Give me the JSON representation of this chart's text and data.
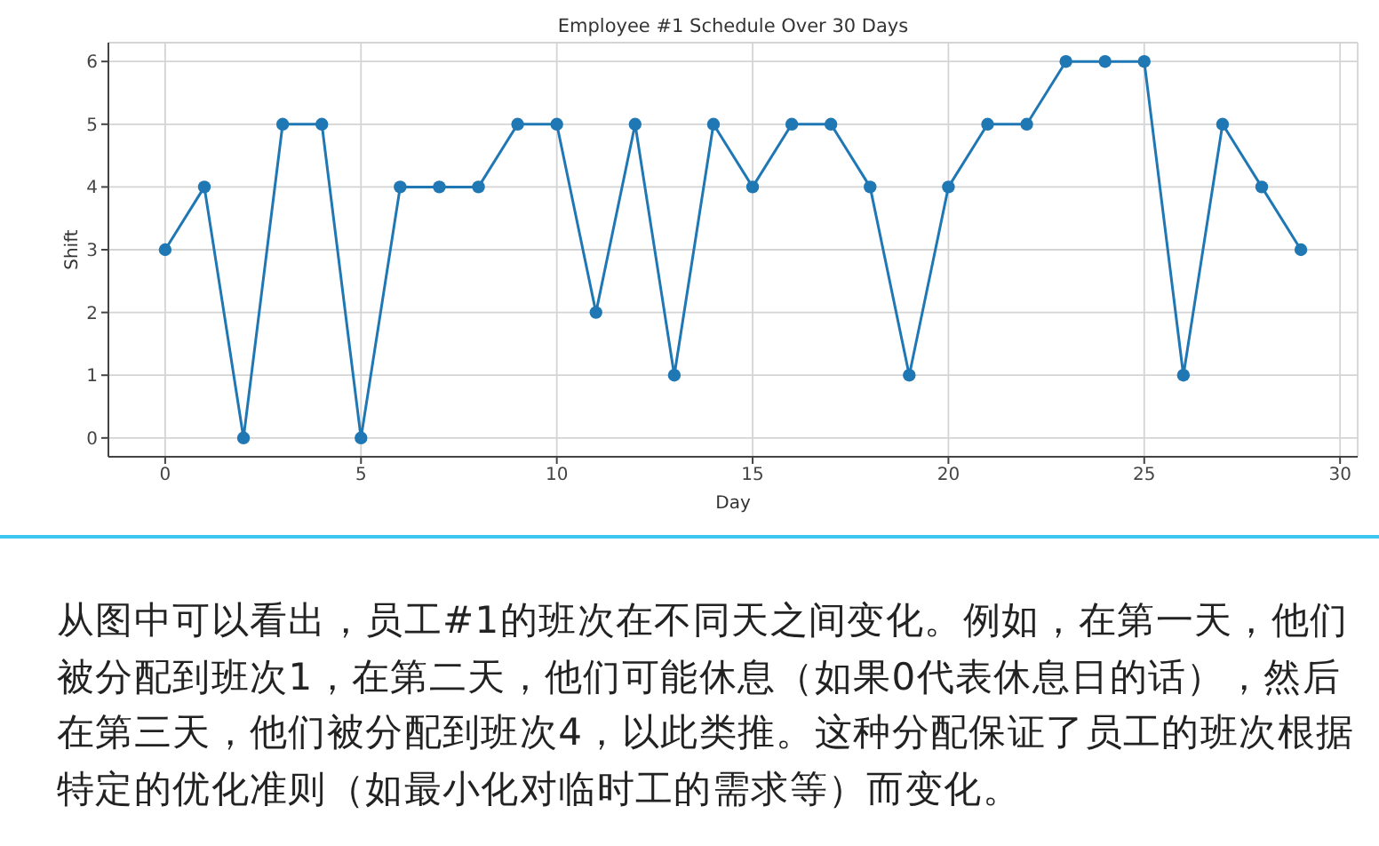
{
  "chart_data": {
    "type": "line",
    "title": "Employee #1 Schedule Over 30 Days",
    "xlabel": "Day",
    "ylabel": "Shift",
    "x": [
      0,
      1,
      2,
      3,
      4,
      5,
      6,
      7,
      8,
      9,
      10,
      11,
      12,
      13,
      14,
      15,
      16,
      17,
      18,
      19,
      20,
      21,
      22,
      23,
      24,
      25,
      26,
      27,
      28,
      29
    ],
    "series": [
      {
        "color": "#1f77b4",
        "values": [
          3,
          4,
          0,
          5,
          5,
          0,
          4,
          4,
          4,
          5,
          5,
          2,
          5,
          1,
          5,
          4,
          5,
          5,
          4,
          1,
          4,
          5,
          5,
          6,
          6,
          6,
          1,
          5,
          4,
          3
        ]
      }
    ],
    "xlim": [
      -1.45,
      30.45
    ],
    "ylim": [
      -0.3,
      6.3
    ],
    "xticks": [
      0,
      5,
      10,
      15,
      20,
      25,
      30
    ],
    "yticks": [
      0,
      1,
      2,
      3,
      4,
      5,
      6
    ],
    "grid": true,
    "marker": "circle",
    "line_style": "solid",
    "annotations": [
      "从图中可以看出，员工#1的班次在不同天之间变化。例如，在第一天，他们被分配到班次1，在第二天，他们可能休息（如果0代表休息日的话），然后在第三天，他们被分配到班次4，以此类推。这种分配保证了员工的班次根据特定的优化准则（如最小化对临时工的需求等）而变化。"
    ]
  }
}
